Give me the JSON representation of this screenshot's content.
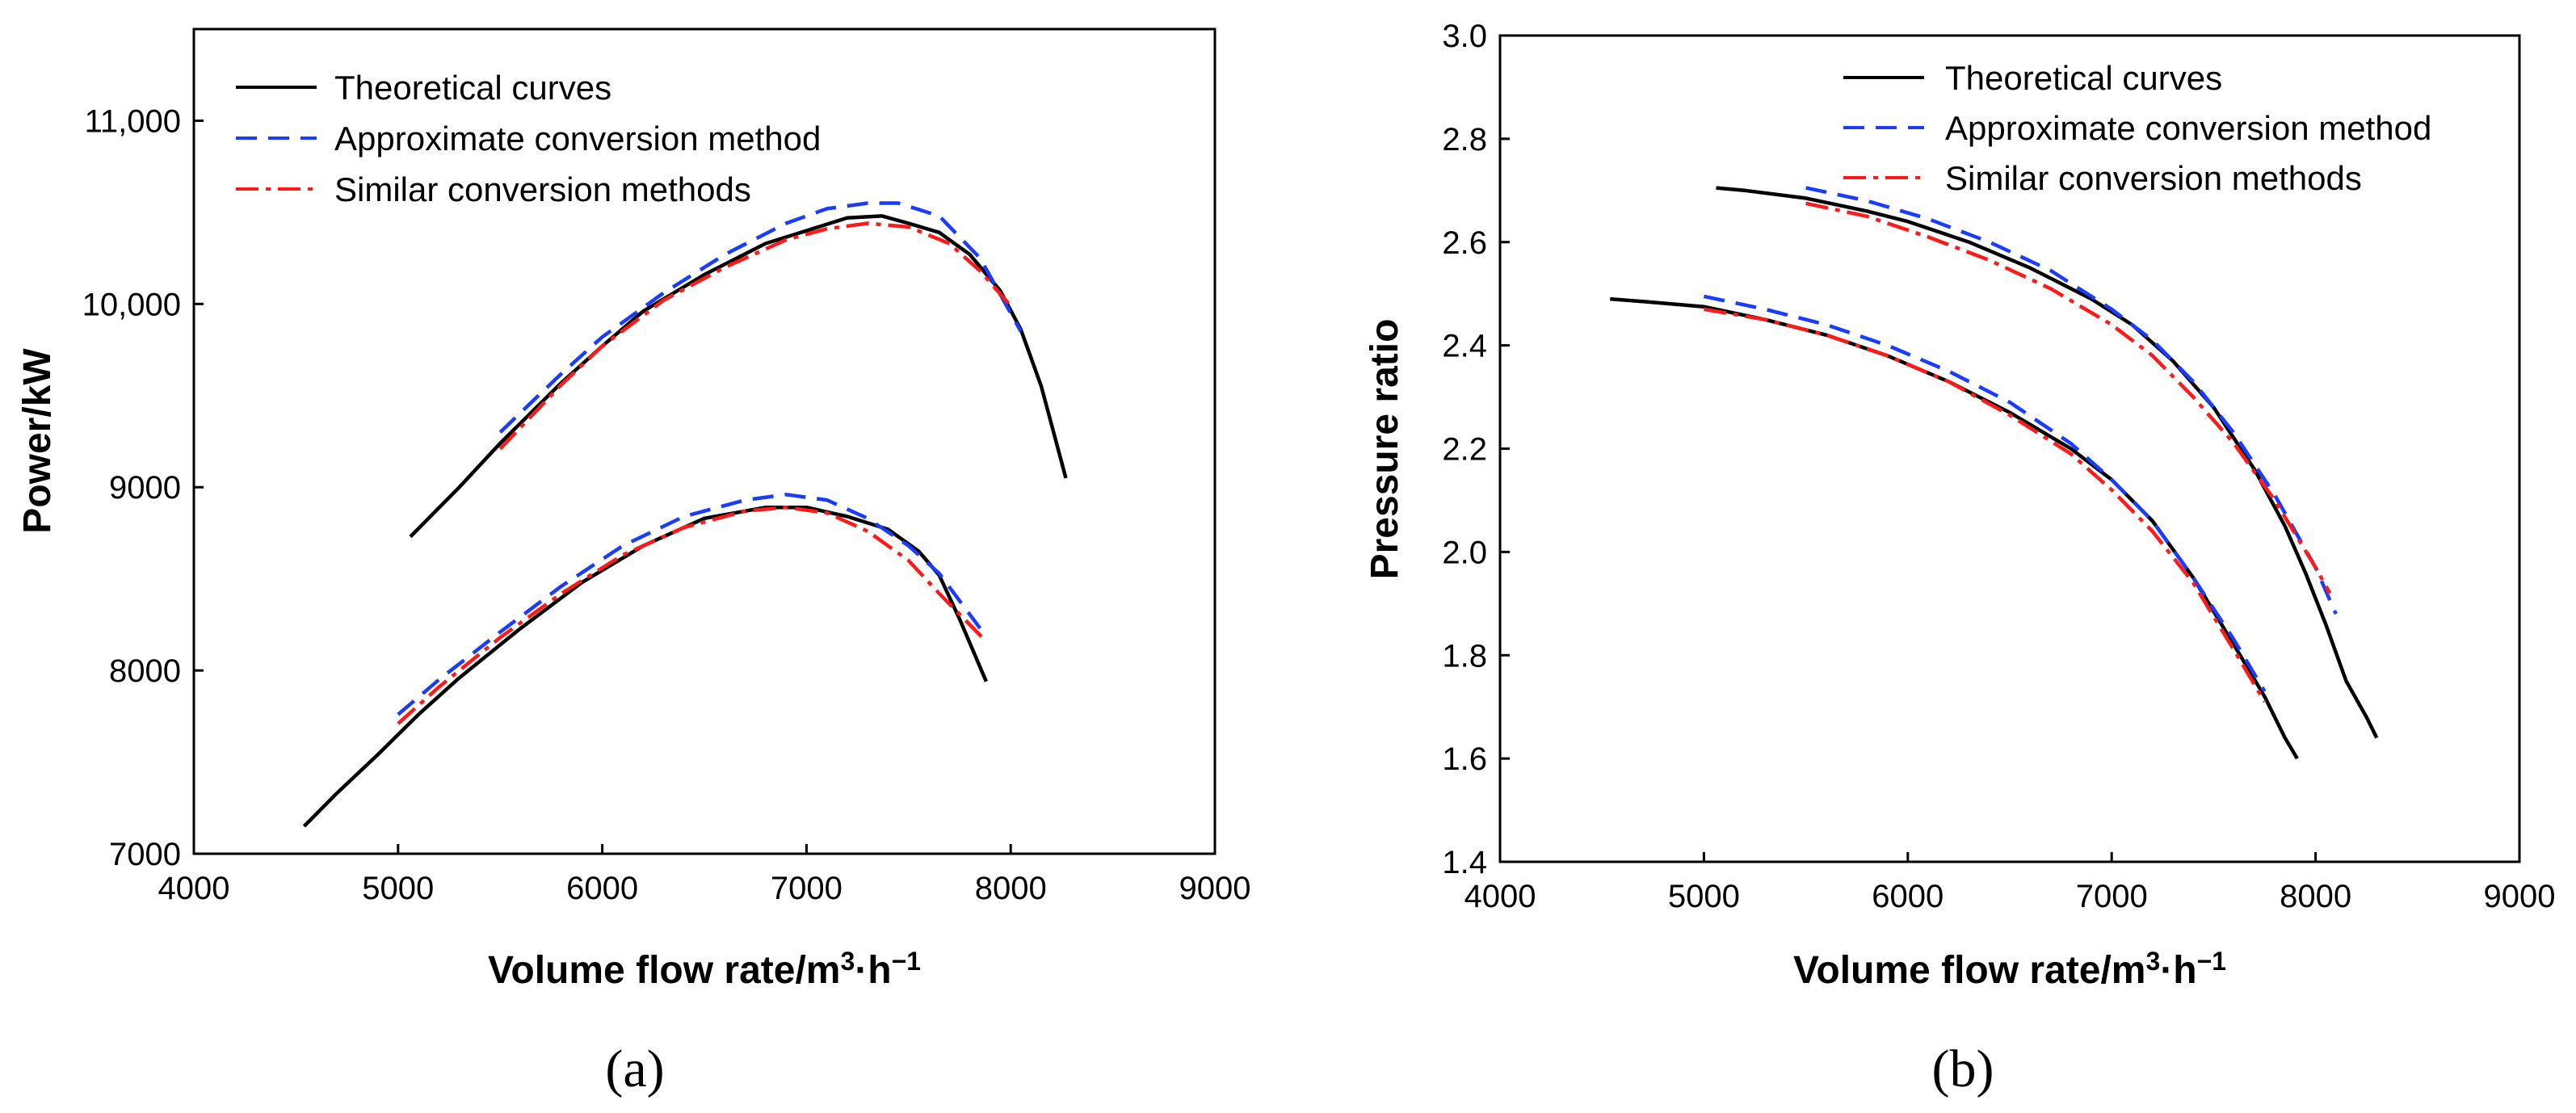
{
  "colors": {
    "theoretical": "#000000",
    "approximate": "#1a3cff",
    "similar": "#ff1a1a"
  },
  "chart_data": [
    {
      "panel": "(a)",
      "type": "line",
      "xlabel": "Volume flow rate/m³·h⁻¹",
      "ylabel": "Power/kW",
      "xlim": [
        4000,
        9000
      ],
      "ylim": [
        7000,
        11500
      ],
      "xticks": [
        4000,
        5000,
        6000,
        7000,
        8000,
        9000
      ],
      "xtick_labels": [
        "4000",
        "5000",
        "6000",
        "7000",
        "8000",
        "9000"
      ],
      "yticks": [
        7000,
        8000,
        9000,
        10000,
        11000
      ],
      "ytick_labels": [
        "7000",
        "8000",
        "9000",
        "10,000",
        "11,000"
      ],
      "legend": {
        "position": "top-left",
        "entries": [
          "Theoretical curves",
          "Approximate conversion method",
          "Similar conversion methods"
        ]
      },
      "series": [
        {
          "name": "Theoretical curves",
          "style": "solid",
          "group": "upper",
          "x": [
            5060,
            5300,
            5500,
            5800,
            6000,
            6200,
            6500,
            6800,
            7000,
            7200,
            7370,
            7500,
            7650,
            7800,
            7950,
            8050,
            8150,
            8270
          ],
          "y": [
            8730,
            9000,
            9240,
            9570,
            9770,
            9960,
            10160,
            10330,
            10400,
            10470,
            10480,
            10440,
            10390,
            10270,
            10070,
            9860,
            9550,
            9050
          ]
        },
        {
          "name": "Approximate conversion method",
          "style": "dashed",
          "group": "upper",
          "x": [
            5500,
            5800,
            6000,
            6300,
            6600,
            6900,
            7100,
            7300,
            7450,
            7650,
            7850,
            8050
          ],
          "y": [
            9300,
            9620,
            9820,
            10060,
            10270,
            10440,
            10520,
            10550,
            10550,
            10480,
            10250,
            9850
          ]
        },
        {
          "name": "Similar conversion methods",
          "style": "dashdot",
          "group": "upper",
          "x": [
            5500,
            5800,
            6000,
            6300,
            6600,
            6900,
            7100,
            7300,
            7500,
            7700,
            7850,
            8000
          ],
          "y": [
            9210,
            9560,
            9770,
            10020,
            10200,
            10350,
            10410,
            10440,
            10420,
            10330,
            10180,
            9990
          ]
        },
        {
          "name": "Theoretical curves",
          "style": "solid",
          "group": "lower",
          "x": [
            4540,
            4700,
            4900,
            5100,
            5300,
            5600,
            5900,
            6200,
            6500,
            6800,
            7000,
            7200,
            7400,
            7550,
            7650,
            7750,
            7880
          ],
          "y": [
            7150,
            7330,
            7540,
            7760,
            7960,
            8230,
            8480,
            8680,
            8830,
            8890,
            8890,
            8840,
            8770,
            8650,
            8520,
            8280,
            7940
          ]
        },
        {
          "name": "Approximate conversion method",
          "style": "dashed",
          "group": "lower",
          "x": [
            5000,
            5200,
            5500,
            5800,
            6100,
            6400,
            6700,
            6900,
            7100,
            7300,
            7500,
            7650,
            7850
          ],
          "y": [
            7760,
            7950,
            8210,
            8460,
            8680,
            8840,
            8930,
            8960,
            8930,
            8830,
            8680,
            8530,
            8230
          ]
        },
        {
          "name": "Similar conversion methods",
          "style": "dashdot",
          "group": "lower",
          "x": [
            5000,
            5200,
            5500,
            5800,
            6100,
            6400,
            6700,
            6900,
            7100,
            7300,
            7500,
            7650,
            7870
          ],
          "y": [
            7710,
            7910,
            8180,
            8420,
            8630,
            8780,
            8870,
            8890,
            8860,
            8760,
            8600,
            8420,
            8170
          ]
        }
      ]
    },
    {
      "panel": "(b)",
      "type": "line",
      "xlabel": "Volume flow rate/m³·h⁻¹",
      "ylabel": "Pressure ratio",
      "xlim": [
        4000,
        9000
      ],
      "ylim": [
        1.4,
        3.0
      ],
      "xticks": [
        4000,
        5000,
        6000,
        7000,
        8000,
        9000
      ],
      "xtick_labels": [
        "4000",
        "5000",
        "6000",
        "7000",
        "8000",
        "9000"
      ],
      "yticks": [
        1.4,
        1.6,
        1.8,
        2.0,
        2.2,
        2.4,
        2.6,
        2.8,
        3.0
      ],
      "ytick_labels": [
        "1.4",
        "1.6",
        "1.8",
        "2.0",
        "2.2",
        "2.4",
        "2.6",
        "2.8",
        "3.0"
      ],
      "legend": {
        "position": "top-right",
        "entries": [
          "Theoretical curves",
          "Approximate conversion method",
          "Similar conversion methods"
        ]
      },
      "series": [
        {
          "name": "Theoretical curves",
          "style": "solid",
          "group": "upper",
          "x": [
            5060,
            5200,
            5500,
            5800,
            6000,
            6300,
            6600,
            6900,
            7100,
            7300,
            7500,
            7700,
            7850,
            7950,
            8050,
            8150,
            8250,
            8300
          ],
          "y": [
            2.705,
            2.7,
            2.685,
            2.66,
            2.64,
            2.6,
            2.55,
            2.49,
            2.44,
            2.37,
            2.28,
            2.16,
            2.05,
            1.96,
            1.86,
            1.75,
            1.68,
            1.64
          ]
        },
        {
          "name": "Approximate conversion method",
          "style": "dashed",
          "group": "upper",
          "x": [
            5500,
            5800,
            6100,
            6400,
            6700,
            7000,
            7200,
            7400,
            7600,
            7800,
            8000,
            8100
          ],
          "y": [
            2.705,
            2.68,
            2.645,
            2.6,
            2.545,
            2.47,
            2.41,
            2.33,
            2.23,
            2.11,
            1.97,
            1.88
          ]
        },
        {
          "name": "Similar conversion methods",
          "style": "dashdot",
          "group": "upper",
          "x": [
            5500,
            5800,
            6100,
            6400,
            6700,
            7000,
            7200,
            7400,
            7600,
            7800,
            8000,
            8070
          ],
          "y": [
            2.675,
            2.65,
            2.61,
            2.565,
            2.51,
            2.44,
            2.38,
            2.3,
            2.21,
            2.1,
            1.97,
            1.92
          ]
        },
        {
          "name": "Theoretical curves",
          "style": "solid",
          "group": "lower",
          "x": [
            4540,
            4700,
            5000,
            5300,
            5600,
            5900,
            6200,
            6500,
            6800,
            7000,
            7200,
            7400,
            7600,
            7750,
            7850,
            7910
          ],
          "y": [
            2.49,
            2.485,
            2.475,
            2.45,
            2.42,
            2.38,
            2.33,
            2.27,
            2.2,
            2.14,
            2.06,
            1.95,
            1.82,
            1.72,
            1.64,
            1.6
          ]
        },
        {
          "name": "Approximate conversion method",
          "style": "dashed",
          "group": "lower",
          "x": [
            5000,
            5300,
            5600,
            5900,
            6200,
            6500,
            6800,
            7000,
            7200,
            7400,
            7600,
            7750
          ],
          "y": [
            2.495,
            2.47,
            2.44,
            2.4,
            2.35,
            2.29,
            2.21,
            2.14,
            2.06,
            1.95,
            1.83,
            1.73
          ]
        },
        {
          "name": "Similar conversion methods",
          "style": "dashdot",
          "group": "lower",
          "x": [
            5000,
            5300,
            5600,
            5900,
            6200,
            6500,
            6800,
            7000,
            7200,
            7400,
            7600,
            7750
          ],
          "y": [
            2.47,
            2.45,
            2.42,
            2.38,
            2.33,
            2.265,
            2.19,
            2.12,
            2.04,
            1.94,
            1.81,
            1.71
          ]
        }
      ]
    }
  ]
}
